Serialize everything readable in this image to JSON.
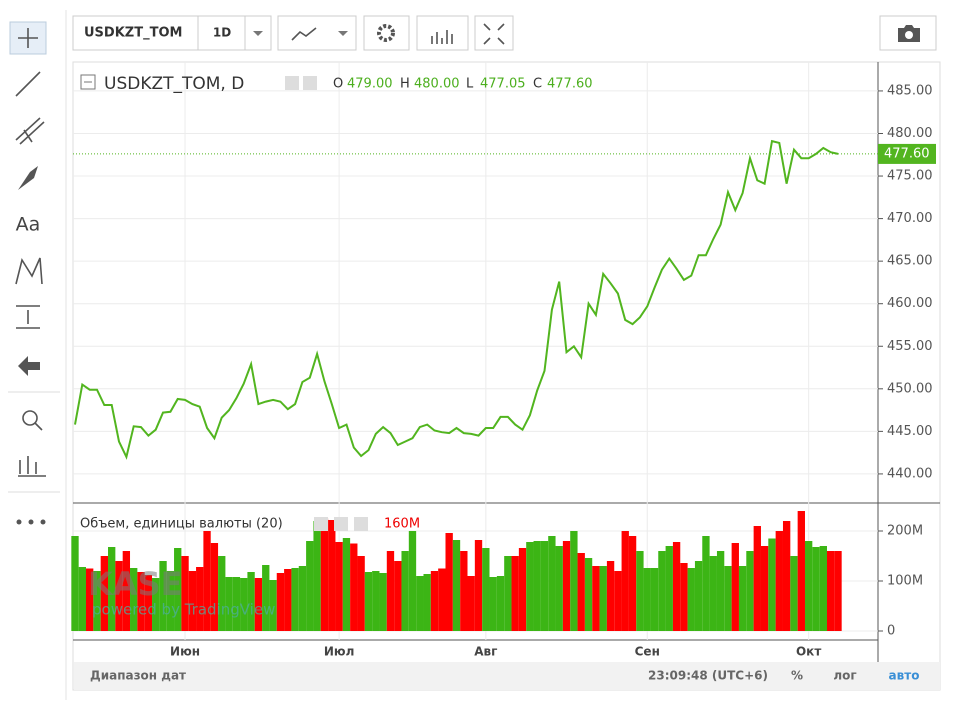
{
  "toolbar": {
    "symbol": "USDKZT_TOM",
    "interval": "1D",
    "text_tool": "Aa"
  },
  "ohlc": [
    {
      "key": "O",
      "label": "479.00"
    },
    {
      "key": "H",
      "label": "480.00"
    },
    {
      "key": "L",
      "label": "477.05"
    },
    {
      "key": "C",
      "label": "477.60"
    }
  ],
  "watermark": {
    "logo": "KASE",
    "credit": "powered by TradingView"
  },
  "footer": {
    "range": "Диапазон дат",
    "time": "23:09:48 (UTC+6)",
    "percent": "%",
    "log": "лог",
    "auto": "авто"
  },
  "chart_data": [
    {
      "type": "line",
      "title": "USDKZT_TOM, D",
      "last_label": "477.60",
      "categories": [
        null,
        null,
        null,
        null,
        null,
        null,
        null,
        null,
        null,
        null,
        null,
        null,
        null,
        null,
        null,
        "Июн",
        null,
        null,
        null,
        null,
        null,
        null,
        null,
        null,
        null,
        null,
        null,
        null,
        null,
        null,
        null,
        null,
        null,
        null,
        null,
        null,
        "Июл",
        null,
        null,
        null,
        null,
        null,
        null,
        null,
        null,
        null,
        null,
        null,
        null,
        null,
        null,
        null,
        null,
        null,
        null,
        null,
        "Авг",
        null,
        null,
        null,
        null,
        null,
        null,
        null,
        null,
        null,
        null,
        null,
        null,
        null,
        null,
        null,
        null,
        null,
        null,
        null,
        null,
        null,
        "Сен",
        null,
        null,
        null,
        null,
        null,
        null,
        null,
        null,
        null,
        null,
        null,
        null,
        null,
        null,
        null,
        null,
        null,
        null,
        null,
        null,
        null,
        "Окт",
        null,
        null,
        null,
        null
      ],
      "series": [
        {
          "name": "USDKZT_TOM",
          "color": "#52b51f",
          "values": [
            445.8,
            450.5,
            449.9,
            449.9,
            448.1,
            448.1,
            443.8,
            442.0,
            445.6,
            445.5,
            444.5,
            445.2,
            447.2,
            447.3,
            448.8,
            448.7,
            448.2,
            447.9,
            445.4,
            444.2,
            446.6,
            447.5,
            448.9,
            450.6,
            452.9,
            448.2,
            448.5,
            448.7,
            448.5,
            447.6,
            448.2,
            450.8,
            451.3,
            454.1,
            450.9,
            448.2,
            445.4,
            445.8,
            443.1,
            442.1,
            442.8,
            444.7,
            445.5,
            444.8,
            443.4,
            443.8,
            444.2,
            445.5,
            445.8,
            445.1,
            444.9,
            444.8,
            445.4,
            444.8,
            444.7,
            444.5,
            445.4,
            445.4,
            446.7,
            446.7,
            445.8,
            445.2,
            446.9,
            449.8,
            452.1,
            459.3,
            462.6,
            454.3,
            455.0,
            453.7,
            460.0,
            458.7,
            463.5,
            462.4,
            461.2,
            458.1,
            457.6,
            458.4,
            459.7,
            461.9,
            464.0,
            465.3,
            464.1,
            462.8,
            463.3,
            465.7,
            465.7,
            467.6,
            469.3,
            473.1,
            471.0,
            473.0,
            477.1,
            474.5,
            474.1,
            479.1,
            478.9,
            474.1,
            478.1,
            477.1,
            477.1,
            477.6,
            478.3,
            477.8,
            477.6
          ]
        }
      ],
      "ylim": [
        436.7,
        488.4
      ],
      "yticks": [
        {
          "value": 440,
          "label": "440.00"
        },
        {
          "value": 445,
          "label": "445.00"
        },
        {
          "value": 450,
          "label": "450.00"
        },
        {
          "value": 455,
          "label": "455.00"
        },
        {
          "value": 460,
          "label": "460.00"
        },
        {
          "value": 465,
          "label": "465.00"
        },
        {
          "value": 470,
          "label": "470.00"
        },
        {
          "value": 475,
          "label": "475.00"
        },
        {
          "value": 480,
          "label": "480.00"
        },
        {
          "value": 485,
          "label": "485.00"
        }
      ],
      "grid": true
    },
    {
      "type": "bar",
      "title": "Объем, единицы валюты (20)",
      "last_label": "160M",
      "up_color": "#3cb515",
      "down_color": "#ff0000",
      "values": [
        190,
        128,
        125,
        120,
        150,
        168,
        140,
        160,
        126,
        118,
        112,
        106,
        140,
        120,
        166,
        150,
        120,
        128,
        200,
        176,
        150,
        108,
        108,
        106,
        118,
        106,
        132,
        102,
        116,
        124,
        126,
        130,
        180,
        220,
        225,
        222,
        178,
        186,
        175,
        150,
        118,
        120,
        116,
        160,
        140,
        160,
        200,
        110,
        114,
        120,
        125,
        196,
        182,
        160,
        110,
        182,
        166,
        108,
        110,
        150,
        150,
        166,
        178,
        180,
        180,
        190,
        170,
        180,
        200,
        156,
        146,
        130,
        130,
        140,
        120,
        200,
        190,
        160,
        126,
        126,
        160,
        170,
        178,
        136,
        126,
        140,
        190,
        150,
        160,
        130,
        176,
        130,
        160,
        210,
        170,
        185,
        200,
        220,
        150,
        240,
        180,
        168,
        170,
        160,
        160
      ],
      "ylim": [
        0,
        256
      ],
      "yticks": [
        0,
        {
          "value": 100,
          "label": "100M"
        },
        {
          "value": 200,
          "label": "200M"
        }
      ],
      "grid": true
    }
  ]
}
